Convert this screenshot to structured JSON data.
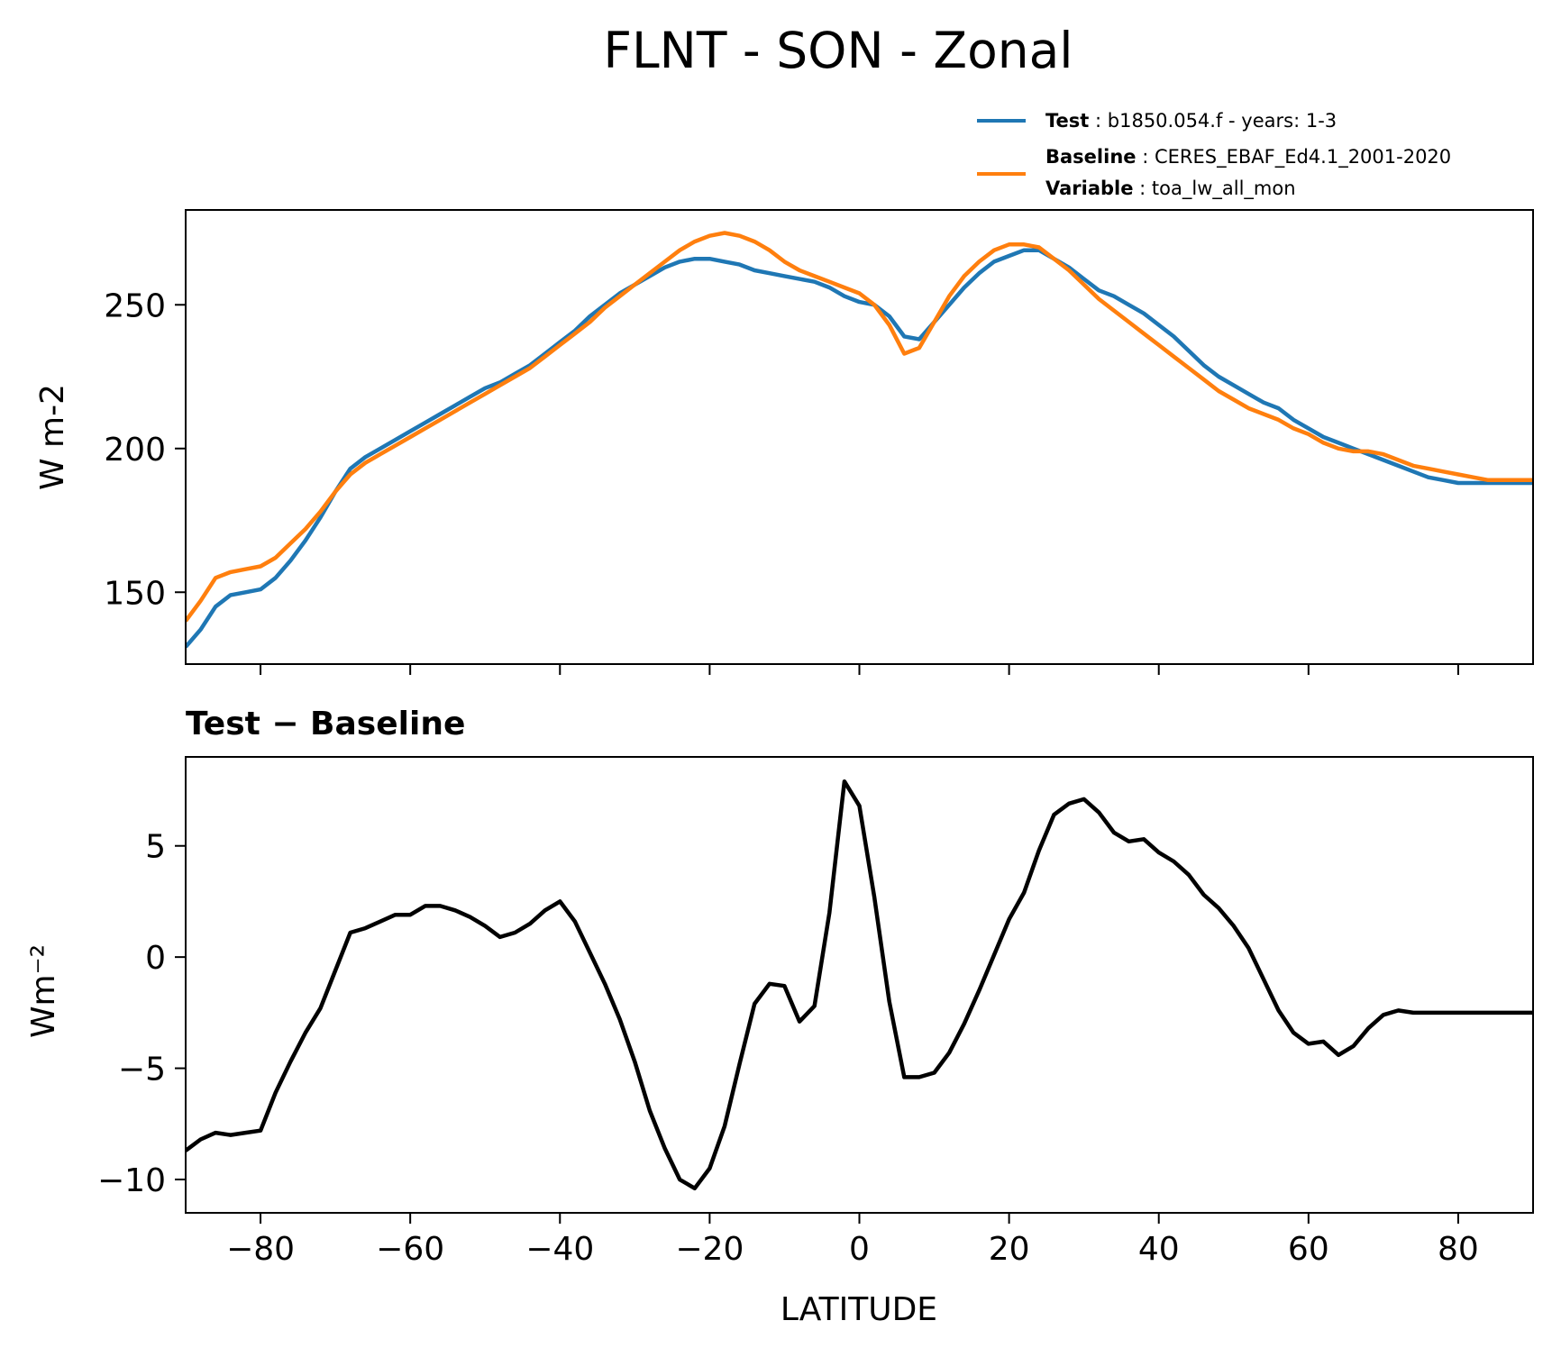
{
  "figure": {
    "title": "FLNT - SON - Zonal"
  },
  "legend": {
    "test_key": "Test",
    "test_value": ": b1850.054.f - years: 1-3",
    "baseline_key": "Baseline",
    "baseline_value": ": CERES_EBAF_Ed4.1_2001-2020",
    "variable_key": "Variable",
    "variable_value": ": toa_lw_all_mon"
  },
  "colors": {
    "test": "#1f77b4",
    "baseline": "#ff7f0e",
    "diff": "#000000"
  },
  "chart_data": [
    {
      "type": "line",
      "title": "",
      "xlabel": "",
      "ylabel": "W m-2",
      "xlim": [
        -90,
        90
      ],
      "ylim": [
        125,
        283
      ],
      "yticks": [
        150,
        200,
        250
      ],
      "xticks": [
        -80,
        -60,
        -40,
        -20,
        0,
        20,
        40,
        60,
        80
      ],
      "series": [
        {
          "name": "Test",
          "x": [
            -90,
            -88,
            -86,
            -84,
            -82,
            -80,
            -78,
            -76,
            -74,
            -72,
            -70,
            -68,
            -66,
            -64,
            -62,
            -60,
            -58,
            -56,
            -54,
            -52,
            -50,
            -48,
            -46,
            -44,
            -42,
            -40,
            -38,
            -36,
            -34,
            -32,
            -30,
            -28,
            -26,
            -24,
            -22,
            -20,
            -18,
            -16,
            -14,
            -12,
            -10,
            -8,
            -6,
            -4,
            -2,
            0,
            2,
            4,
            6,
            8,
            10,
            12,
            14,
            16,
            18,
            20,
            22,
            24,
            26,
            28,
            30,
            32,
            34,
            36,
            38,
            40,
            42,
            44,
            46,
            48,
            50,
            52,
            54,
            56,
            58,
            60,
            62,
            64,
            66,
            68,
            70,
            72,
            74,
            76,
            78,
            80,
            82,
            84,
            86,
            88,
            90
          ],
          "values": [
            131,
            137,
            145,
            149,
            150,
            151,
            155,
            161,
            168,
            176,
            185,
            193,
            197,
            200,
            203,
            206,
            209,
            212,
            215,
            218,
            221,
            223,
            226,
            229,
            233,
            237,
            241,
            246,
            250,
            254,
            257,
            260,
            263,
            265,
            266,
            266,
            265,
            264,
            262,
            261,
            260,
            259,
            258,
            256,
            253,
            251,
            250,
            246,
            239,
            238,
            244,
            250,
            256,
            261,
            265,
            267,
            269,
            269,
            266,
            263,
            259,
            255,
            253,
            250,
            247,
            243,
            239,
            234,
            229,
            225,
            222,
            219,
            216,
            214,
            210,
            207,
            204,
            202,
            200,
            198,
            196,
            194,
            192,
            190,
            189,
            188,
            188,
            188,
            188,
            188,
            188
          ]
        },
        {
          "name": "Baseline",
          "x": [
            -90,
            -88,
            -86,
            -84,
            -82,
            -80,
            -78,
            -76,
            -74,
            -72,
            -70,
            -68,
            -66,
            -64,
            -62,
            -60,
            -58,
            -56,
            -54,
            -52,
            -50,
            -48,
            -46,
            -44,
            -42,
            -40,
            -38,
            -36,
            -34,
            -32,
            -30,
            -28,
            -26,
            -24,
            -22,
            -20,
            -18,
            -16,
            -14,
            -12,
            -10,
            -8,
            -6,
            -4,
            -2,
            0,
            2,
            4,
            6,
            8,
            10,
            12,
            14,
            16,
            18,
            20,
            22,
            24,
            26,
            28,
            30,
            32,
            34,
            36,
            38,
            40,
            42,
            44,
            46,
            48,
            50,
            52,
            54,
            56,
            58,
            60,
            62,
            64,
            66,
            68,
            70,
            72,
            74,
            76,
            78,
            80,
            82,
            84,
            86,
            88,
            90
          ],
          "values": [
            140,
            147,
            155,
            157,
            158,
            159,
            162,
            167,
            172,
            178,
            185,
            191,
            195,
            198,
            201,
            204,
            207,
            210,
            213,
            216,
            219,
            222,
            225,
            228,
            232,
            236,
            240,
            244,
            249,
            253,
            257,
            261,
            265,
            269,
            272,
            274,
            275,
            274,
            272,
            269,
            265,
            262,
            260,
            258,
            256,
            254,
            250,
            243,
            233,
            235,
            244,
            253,
            260,
            265,
            269,
            271,
            271,
            270,
            266,
            262,
            257,
            252,
            248,
            244,
            240,
            236,
            232,
            228,
            224,
            220,
            217,
            214,
            212,
            210,
            207,
            205,
            202,
            200,
            199,
            199,
            198,
            196,
            194,
            193,
            192,
            191,
            190,
            189,
            189,
            189,
            189
          ]
        }
      ]
    },
    {
      "type": "line",
      "title": "Test − Baseline",
      "xlabel": "LATITUDE",
      "ylabel": "Wm⁻²",
      "xlim": [
        -90,
        90
      ],
      "ylim": [
        -11.5,
        9
      ],
      "yticks": [
        -10,
        -5,
        0,
        5
      ],
      "xticks": [
        -80,
        -60,
        -40,
        -20,
        0,
        20,
        40,
        60,
        80
      ],
      "series": [
        {
          "name": "Test − Baseline",
          "x": [
            -90,
            -88,
            -86,
            -84,
            -82,
            -80,
            -78,
            -76,
            -74,
            -72,
            -70,
            -68,
            -66,
            -64,
            -62,
            -60,
            -58,
            -56,
            -54,
            -52,
            -50,
            -48,
            -46,
            -44,
            -42,
            -40,
            -38,
            -36,
            -34,
            -32,
            -30,
            -28,
            -26,
            -24,
            -22,
            -20,
            -18,
            -16,
            -14,
            -12,
            -10,
            -8,
            -6,
            -4,
            -2,
            0,
            2,
            4,
            6,
            8,
            10,
            12,
            14,
            16,
            18,
            20,
            22,
            24,
            26,
            28,
            30,
            32,
            34,
            36,
            38,
            40,
            42,
            44,
            46,
            48,
            50,
            52,
            54,
            56,
            58,
            60,
            62,
            64,
            66,
            68,
            70,
            72,
            74,
            76,
            78,
            80,
            82,
            84,
            86,
            88,
            90
          ],
          "values": [
            -8.7,
            -8.2,
            -7.9,
            -8.0,
            -7.9,
            -7.8,
            -6.1,
            -4.7,
            -3.4,
            -2.3,
            -0.6,
            1.1,
            1.3,
            1.6,
            1.9,
            1.9,
            2.3,
            2.3,
            2.1,
            1.8,
            1.4,
            0.9,
            1.1,
            1.5,
            2.1,
            2.5,
            1.6,
            0.2,
            -1.2,
            -2.8,
            -4.7,
            -6.9,
            -8.6,
            -10.0,
            -10.4,
            -9.5,
            -7.6,
            -4.8,
            -2.1,
            -1.2,
            -1.3,
            -2.9,
            -2.2,
            2.0,
            7.9,
            6.8,
            2.7,
            -2.0,
            -5.4,
            -5.4,
            -5.2,
            -4.3,
            -3.0,
            -1.5,
            0.1,
            1.7,
            2.9,
            4.8,
            6.4,
            6.9,
            7.1,
            6.5,
            5.6,
            5.2,
            5.3,
            4.7,
            4.3,
            3.7,
            2.8,
            2.2,
            1.4,
            0.4,
            -1.0,
            -2.4,
            -3.4,
            -3.9,
            -3.8,
            -4.4,
            -4.0,
            -3.2,
            -2.6,
            -2.4,
            -2.5,
            -2.5,
            -2.5,
            -2.5,
            -2.5,
            -2.5,
            -2.5,
            -2.5,
            -2.5
          ]
        }
      ]
    }
  ]
}
